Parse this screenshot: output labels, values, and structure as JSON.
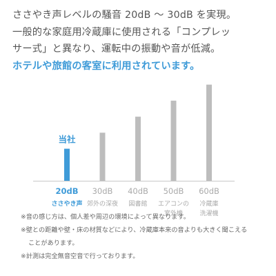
{
  "intro": {
    "lines": [
      "ささやき声レベルの騒音 20dB 〜 30dB を実現。",
      "一般的な家庭用冷蔵庫に使用される「コンプレッ",
      "サー式」と異なり、運転中の振動や音が低減。"
    ],
    "highlight": "ホテルや旅館の客室に利用されています。"
  },
  "chart_data": {
    "type": "bar",
    "categories": [
      "20dB",
      "30dB",
      "40dB",
      "50dB",
      "60dB"
    ],
    "category_captions": [
      [
        "ささやき声"
      ],
      [
        "郊外の深夜"
      ],
      [
        "図書館"
      ],
      [
        "エアコンの",
        "室外機"
      ],
      [
        "冷蔵庫",
        "洗濯機"
      ]
    ],
    "values": [
      20,
      30,
      40,
      50,
      60
    ],
    "highlight_index": 0,
    "highlight_label": "当社",
    "colors": {
      "highlight": "#3f9bd8",
      "other": "#bdbdbd",
      "baseline": "#c8c8c8",
      "caption_other": "#aaaaaa"
    },
    "ylim": [
      0,
      62
    ],
    "grid": false,
    "title": "",
    "xlabel": "",
    "ylabel": ""
  },
  "notes": [
    "※音の感じ方は、個人差や周辺の環境によって異なります。",
    "※壁との距離や壁・床の材質などにより、冷蔵庫本来の音よりも大きく聞こえる",
    "ことがあります。",
    "※計測は完全無音空音で行っております。"
  ]
}
